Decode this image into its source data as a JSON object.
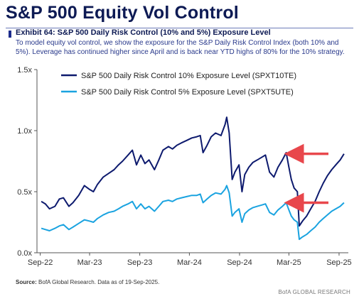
{
  "page": {
    "title": "S&P 500 Equity Vol Control",
    "exhibit_title": "Exhibit 64: S&P 500 Daily Risk Control (10% and 5%) Exposure Level",
    "exhibit_description": "To model equity vol control, we show the exposure for the S&P Daily Risk Control Index (both 10% and 5%).  Leverage has continued higher since April and is back near YTD highs of 80% for the 10% strategy.",
    "source_label": "Source:",
    "source_text": "BofA Global Research. Data as of 19-Sep-2025.",
    "brand": "BofA GLOBAL RESEARCH"
  },
  "chart_data": {
    "type": "line",
    "x_ticks": [
      "Sep-22",
      "Mar-23",
      "Sep-23",
      "Mar-24",
      "Sep-24",
      "Mar-25",
      "Sep-25"
    ],
    "y_ticks": [
      "0.0x",
      "0.5x",
      "1.0x",
      "1.5x"
    ],
    "ylim": [
      0,
      1.5
    ],
    "grid": false,
    "legend_position": "top-left",
    "annotations": [
      "red arrow pointing to 10% series peak near Mar-25",
      "red arrow pointing to 5% series near Mar-25"
    ],
    "colors": {
      "series_10": "#0d1a6e",
      "series_5": "#1aa3e0",
      "arrow": "#e8474c",
      "axis": "#555555"
    },
    "series": [
      {
        "name": "S&P 500 Daily Risk Control 10% Exposure Level (SPXT10TE)",
        "points": [
          [
            "2022-09-05",
            0.42
          ],
          [
            "2022-09-20",
            0.4
          ],
          [
            "2022-10-05",
            0.36
          ],
          [
            "2022-10-25",
            0.38
          ],
          [
            "2022-11-10",
            0.44
          ],
          [
            "2022-11-25",
            0.45
          ],
          [
            "2022-12-15",
            0.38
          ],
          [
            "2022-12-30",
            0.41
          ],
          [
            "2023-01-20",
            0.47
          ],
          [
            "2023-02-10",
            0.55
          ],
          [
            "2023-02-28",
            0.52
          ],
          [
            "2023-03-15",
            0.5
          ],
          [
            "2023-03-30",
            0.56
          ],
          [
            "2023-04-20",
            0.62
          ],
          [
            "2023-05-10",
            0.65
          ],
          [
            "2023-05-30",
            0.68
          ],
          [
            "2023-06-15",
            0.72
          ],
          [
            "2023-06-30",
            0.75
          ],
          [
            "2023-07-20",
            0.8
          ],
          [
            "2023-08-05",
            0.84
          ],
          [
            "2023-08-20",
            0.72
          ],
          [
            "2023-09-05",
            0.8
          ],
          [
            "2023-09-20",
            0.73
          ],
          [
            "2023-10-05",
            0.76
          ],
          [
            "2023-10-25",
            0.68
          ],
          [
            "2023-11-10",
            0.76
          ],
          [
            "2023-11-25",
            0.84
          ],
          [
            "2023-12-15",
            0.87
          ],
          [
            "2023-12-30",
            0.85
          ],
          [
            "2024-01-15",
            0.88
          ],
          [
            "2024-02-01",
            0.9
          ],
          [
            "2024-02-20",
            0.92
          ],
          [
            "2024-03-10",
            0.94
          ],
          [
            "2024-03-28",
            0.95
          ],
          [
            "2024-04-10",
            0.96
          ],
          [
            "2024-04-20",
            0.82
          ],
          [
            "2024-05-05",
            0.88
          ],
          [
            "2024-05-20",
            0.95
          ],
          [
            "2024-06-05",
            0.98
          ],
          [
            "2024-06-25",
            0.96
          ],
          [
            "2024-07-10",
            1.05
          ],
          [
            "2024-07-16",
            1.11
          ],
          [
            "2024-07-25",
            0.98
          ],
          [
            "2024-08-05",
            0.6
          ],
          [
            "2024-08-15",
            0.66
          ],
          [
            "2024-08-30",
            0.72
          ],
          [
            "2024-09-10",
            0.5
          ],
          [
            "2024-09-20",
            0.64
          ],
          [
            "2024-10-05",
            0.7
          ],
          [
            "2024-10-20",
            0.74
          ],
          [
            "2024-11-05",
            0.76
          ],
          [
            "2024-11-20",
            0.78
          ],
          [
            "2024-12-05",
            0.8
          ],
          [
            "2024-12-20",
            0.66
          ],
          [
            "2025-01-05",
            0.62
          ],
          [
            "2025-01-20",
            0.7
          ],
          [
            "2025-02-05",
            0.76
          ],
          [
            "2025-02-19",
            0.82
          ],
          [
            "2025-03-01",
            0.7
          ],
          [
            "2025-03-10",
            0.6
          ],
          [
            "2025-03-20",
            0.53
          ],
          [
            "2025-04-01",
            0.5
          ],
          [
            "2025-04-08",
            0.22
          ],
          [
            "2025-04-20",
            0.26
          ],
          [
            "2025-05-05",
            0.3
          ],
          [
            "2025-05-20",
            0.36
          ],
          [
            "2025-06-05",
            0.42
          ],
          [
            "2025-06-20",
            0.5
          ],
          [
            "2025-07-05",
            0.57
          ],
          [
            "2025-07-20",
            0.63
          ],
          [
            "2025-08-05",
            0.68
          ],
          [
            "2025-08-20",
            0.72
          ],
          [
            "2025-09-05",
            0.76
          ],
          [
            "2025-09-19",
            0.81
          ]
        ]
      },
      {
        "name": "S&P 500 Daily Risk Control 5% Exposure Level (SPXT5UTE)",
        "points": [
          [
            "2022-09-05",
            0.2
          ],
          [
            "2022-09-20",
            0.19
          ],
          [
            "2022-10-05",
            0.18
          ],
          [
            "2022-10-25",
            0.2
          ],
          [
            "2022-11-10",
            0.22
          ],
          [
            "2022-11-25",
            0.23
          ],
          [
            "2022-12-15",
            0.19
          ],
          [
            "2022-12-30",
            0.21
          ],
          [
            "2023-01-20",
            0.24
          ],
          [
            "2023-02-10",
            0.27
          ],
          [
            "2023-02-28",
            0.26
          ],
          [
            "2023-03-15",
            0.25
          ],
          [
            "2023-03-30",
            0.28
          ],
          [
            "2023-04-20",
            0.31
          ],
          [
            "2023-05-10",
            0.33
          ],
          [
            "2023-05-30",
            0.34
          ],
          [
            "2023-06-15",
            0.36
          ],
          [
            "2023-06-30",
            0.38
          ],
          [
            "2023-07-20",
            0.4
          ],
          [
            "2023-08-05",
            0.42
          ],
          [
            "2023-08-20",
            0.36
          ],
          [
            "2023-09-05",
            0.4
          ],
          [
            "2023-09-20",
            0.36
          ],
          [
            "2023-10-05",
            0.38
          ],
          [
            "2023-10-25",
            0.34
          ],
          [
            "2023-11-10",
            0.38
          ],
          [
            "2023-11-25",
            0.42
          ],
          [
            "2023-12-15",
            0.43
          ],
          [
            "2023-12-30",
            0.42
          ],
          [
            "2024-01-15",
            0.44
          ],
          [
            "2024-02-01",
            0.45
          ],
          [
            "2024-02-20",
            0.46
          ],
          [
            "2024-03-10",
            0.47
          ],
          [
            "2024-03-28",
            0.47
          ],
          [
            "2024-04-10",
            0.48
          ],
          [
            "2024-04-20",
            0.41
          ],
          [
            "2024-05-05",
            0.44
          ],
          [
            "2024-05-20",
            0.47
          ],
          [
            "2024-06-05",
            0.49
          ],
          [
            "2024-06-25",
            0.48
          ],
          [
            "2024-07-10",
            0.52
          ],
          [
            "2024-07-16",
            0.55
          ],
          [
            "2024-07-25",
            0.49
          ],
          [
            "2024-08-05",
            0.3
          ],
          [
            "2024-08-15",
            0.33
          ],
          [
            "2024-08-30",
            0.36
          ],
          [
            "2024-09-10",
            0.25
          ],
          [
            "2024-09-20",
            0.32
          ],
          [
            "2024-10-05",
            0.35
          ],
          [
            "2024-10-20",
            0.37
          ],
          [
            "2024-11-05",
            0.38
          ],
          [
            "2024-11-20",
            0.39
          ],
          [
            "2024-12-05",
            0.4
          ],
          [
            "2024-12-20",
            0.33
          ],
          [
            "2025-01-05",
            0.31
          ],
          [
            "2025-01-20",
            0.35
          ],
          [
            "2025-02-05",
            0.38
          ],
          [
            "2025-02-19",
            0.41
          ],
          [
            "2025-03-01",
            0.35
          ],
          [
            "2025-03-10",
            0.3
          ],
          [
            "2025-03-20",
            0.27
          ],
          [
            "2025-04-01",
            0.25
          ],
          [
            "2025-04-08",
            0.11
          ],
          [
            "2025-04-20",
            0.13
          ],
          [
            "2025-05-05",
            0.15
          ],
          [
            "2025-05-20",
            0.18
          ],
          [
            "2025-06-05",
            0.21
          ],
          [
            "2025-06-20",
            0.25
          ],
          [
            "2025-07-05",
            0.28
          ],
          [
            "2025-07-20",
            0.31
          ],
          [
            "2025-08-05",
            0.34
          ],
          [
            "2025-08-20",
            0.36
          ],
          [
            "2025-09-05",
            0.38
          ],
          [
            "2025-09-19",
            0.41
          ]
        ]
      }
    ]
  }
}
